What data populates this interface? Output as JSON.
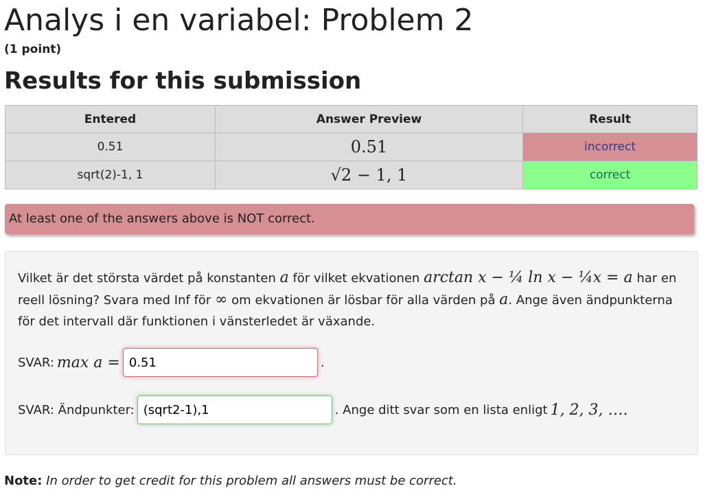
{
  "header": {
    "title": "Analys i en variabel: Problem 2",
    "points": "(1 point)"
  },
  "results_heading": "Results for this submission",
  "table": {
    "columns": [
      "Entered",
      "Answer Preview",
      "Result"
    ],
    "rows": [
      [
        "0.51",
        "0.51",
        "incorrect"
      ],
      [
        "sqrt(2)-1, 1",
        "√2 − 1, 1",
        "correct"
      ]
    ]
  },
  "alert": "At least one of the answers above is NOT correct.",
  "problem": {
    "question": [
      {
        "text": "Vilket är det största värdet på konstanten "
      },
      {
        "math": "a"
      },
      {
        "text": " för vilket ekvationen "
      },
      {
        "math": "arctan x − ¼ ln x − ¼x = a"
      },
      {
        "text": " har en reell lösning? Svara med Inf för "
      },
      {
        "math": "∞"
      },
      {
        "text": " om ekvationen är lösbar för alla värden på "
      },
      {
        "math": "a"
      },
      {
        "text": ". Ange även ändpunkterna för det intervall där funktionen i vänsterledet är växande."
      }
    ],
    "answer1": {
      "label": "SVAR:",
      "math": "max a =",
      "value": "0.51",
      "after": "."
    },
    "answer2": {
      "label": "SVAR: Ändpunkter:",
      "value": "(sqrt2-1),1",
      "after": ". Ange ditt svar som en lista enligt",
      "math": "1, 2, 3, …."
    }
  },
  "note": {
    "label": "Note:",
    "text": "In order to get credit for this problem all answers must be correct."
  }
}
